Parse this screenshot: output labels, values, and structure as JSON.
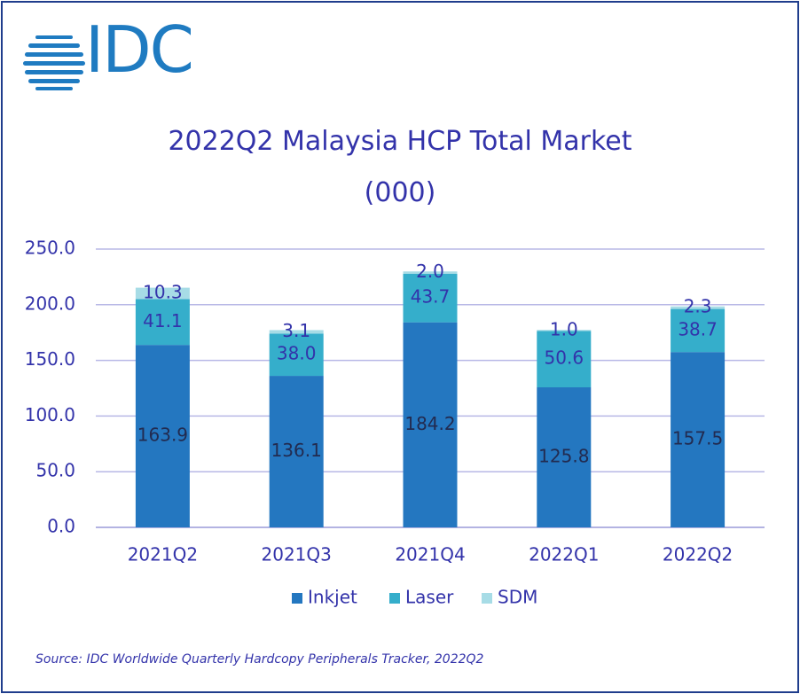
{
  "logo": {
    "text": "IDC"
  },
  "title": {
    "line1": "2022Q2 Malaysia HCP Total Market",
    "line2": "(000)"
  },
  "source": "Source: IDC Worldwide Quarterly Hardcopy Peripherals Tracker, 2022Q2",
  "colors": {
    "Inkjet": "#2477C0",
    "Laser": "#35AECB",
    "SDM": "#A7DCE6",
    "text": "#3333AA",
    "grid": "#B8B8E6"
  },
  "chart_data": {
    "type": "bar",
    "stacked": true,
    "title": "2022Q2 Malaysia HCP Total Market (000)",
    "categories": [
      "2021Q2",
      "2021Q3",
      "2021Q4",
      "2022Q1",
      "2022Q2"
    ],
    "series": [
      {
        "name": "Inkjet",
        "values": [
          163.9,
          136.1,
          184.2,
          125.8,
          157.5
        ],
        "labels": [
          "163.9",
          "136.1",
          "184.2",
          "125.8",
          "157.5"
        ]
      },
      {
        "name": "Laser",
        "values": [
          41.1,
          38.0,
          43.7,
          50.6,
          38.7
        ],
        "labels": [
          "41.1",
          "38.0",
          "43.7",
          "50.6",
          "38.7"
        ]
      },
      {
        "name": "SDM",
        "values": [
          10.3,
          3.1,
          2.0,
          1.0,
          2.3
        ],
        "labels": [
          "10.3",
          "3.1",
          "2.0",
          "1.0",
          "2.3"
        ]
      }
    ],
    "ylim": [
      0,
      250
    ],
    "yticks": [
      "0.0",
      "50.0",
      "100.0",
      "150.0",
      "200.0",
      "250.0"
    ],
    "ytick_values": [
      0,
      50,
      100,
      150,
      200,
      250
    ],
    "grid": true,
    "legend": "bottom"
  }
}
